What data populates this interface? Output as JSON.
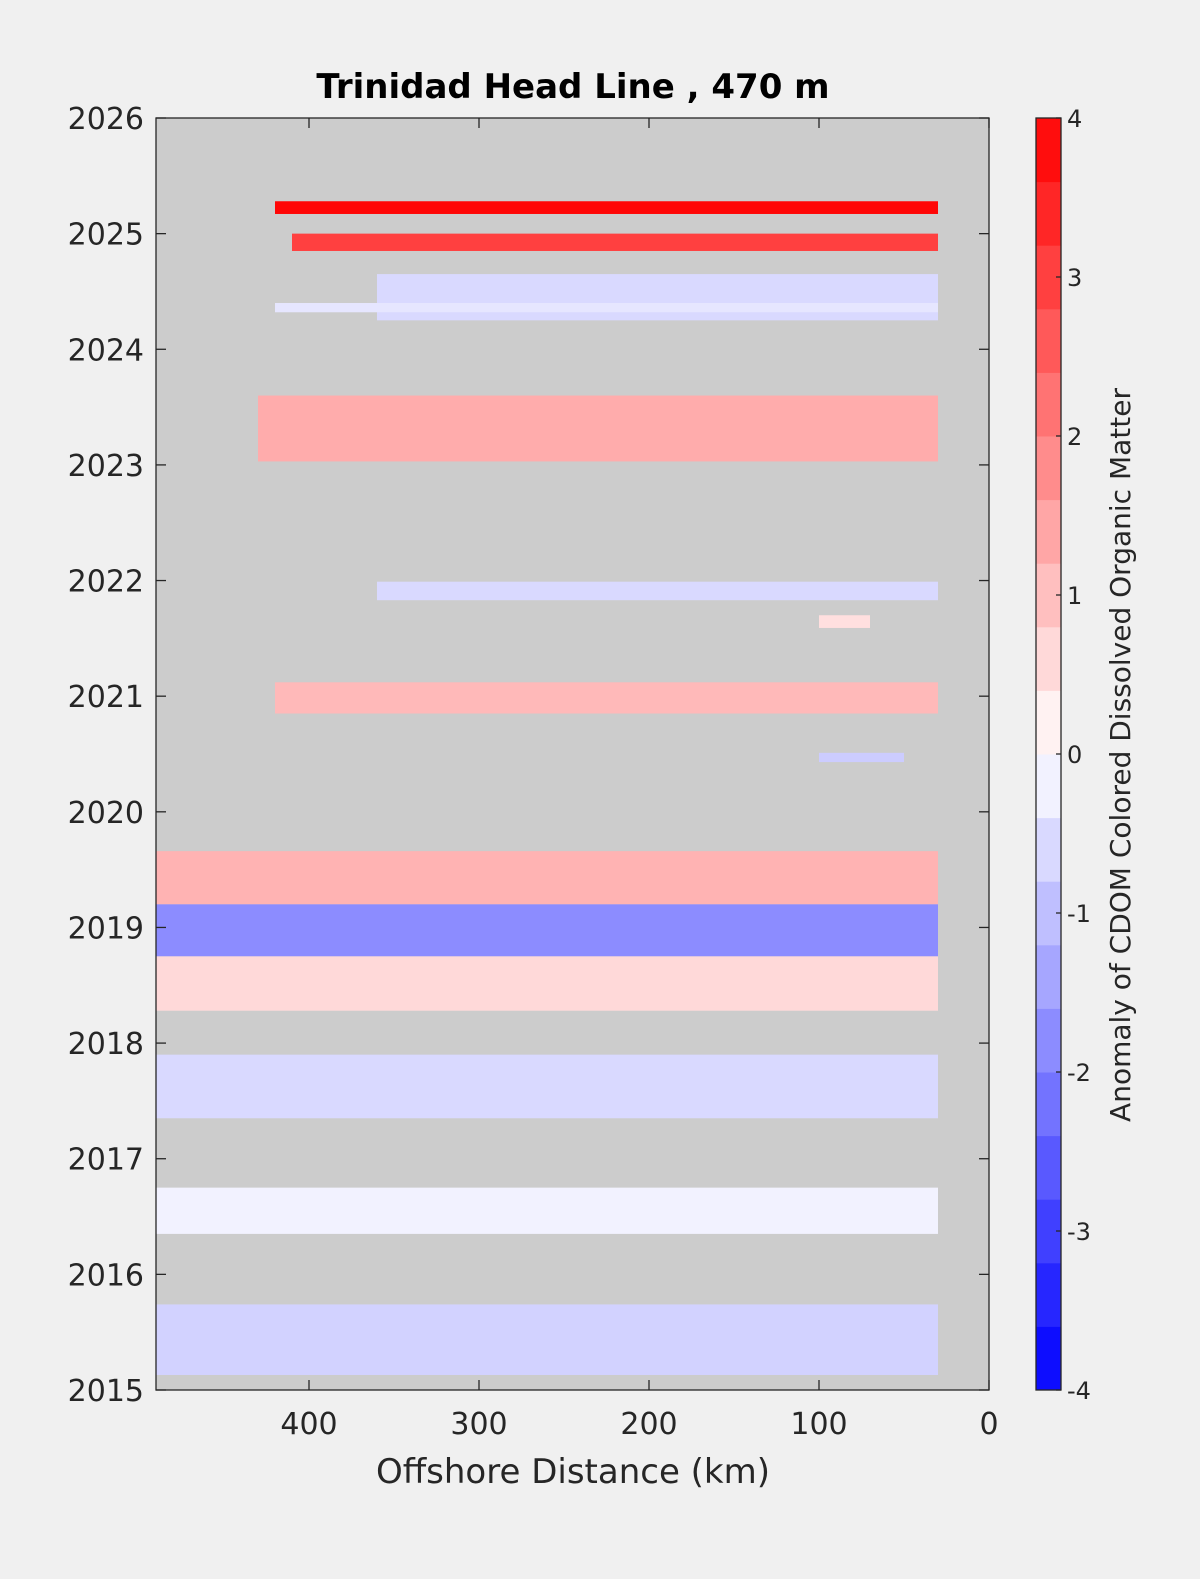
{
  "chart_data": {
    "type": "heatmap",
    "title": "Trinidad Head Line , 470 m",
    "xlabel": "Offshore Distance (km)",
    "ylabel": "",
    "colorbar_label": "Anomaly of CDOM Colored Dissolved Organic Matter",
    "x_reversed": true,
    "xlim": [
      0,
      490
    ],
    "ylim": [
      2015,
      2026
    ],
    "xticks": [
      0,
      100,
      200,
      300,
      400
    ],
    "xtick_labels": [
      "0",
      "100",
      "200",
      "300",
      "400"
    ],
    "yticks": [
      2015,
      2016,
      2017,
      2018,
      2019,
      2020,
      2021,
      2022,
      2023,
      2024,
      2025,
      2026
    ],
    "ytick_labels": [
      "2015",
      "2016",
      "2017",
      "2018",
      "2019",
      "2020",
      "2021",
      "2022",
      "2023",
      "2024",
      "2025",
      "2026"
    ],
    "clim": [
      -4,
      4
    ],
    "colorbar_ticks": [
      -4,
      -3,
      -2,
      -1,
      0,
      1,
      2,
      3,
      4
    ],
    "colorbar_tick_labels": [
      "-4",
      "-3",
      "-2",
      "-1",
      "0",
      "1",
      "2",
      "3",
      "4"
    ],
    "contour_levels": 20,
    "colormap": [
      "#0000ff",
      "#ffffff",
      "#ff0000"
    ],
    "nodata_color": "#cccccc",
    "grid": false,
    "bands": [
      {
        "x": [
          30,
          420
        ],
        "y": [
          2025.17,
          2025.28
        ],
        "value": 3.9
      },
      {
        "x": [
          30,
          410
        ],
        "y": [
          2024.85,
          2025.0
        ],
        "value": 3.0
      },
      {
        "x": [
          30,
          360
        ],
        "y": [
          2024.25,
          2024.65
        ],
        "value": -0.6
      },
      {
        "x": [
          30,
          420
        ],
        "y": [
          2024.32,
          2024.4
        ],
        "value": -0.4
      },
      {
        "x": [
          30,
          430
        ],
        "y": [
          2023.03,
          2023.6
        ],
        "value": 1.3
      },
      {
        "x": [
          30,
          360
        ],
        "y": [
          2021.83,
          2021.99
        ],
        "value": -0.6
      },
      {
        "x": [
          70,
          100
        ],
        "y": [
          2021.59,
          2021.7
        ],
        "value": 0.5
      },
      {
        "x": [
          30,
          420
        ],
        "y": [
          2020.85,
          2021.12
        ],
        "value": 1.1
      },
      {
        "x": [
          50,
          100
        ],
        "y": [
          2020.43,
          2020.51
        ],
        "value": -0.8
      },
      {
        "x": [
          30,
          490
        ],
        "y": [
          2019.2,
          2019.66
        ],
        "value": 1.2
      },
      {
        "x": [
          30,
          490
        ],
        "y": [
          2018.75,
          2019.2
        ],
        "value": -1.8
      },
      {
        "x": [
          30,
          490
        ],
        "y": [
          2018.28,
          2018.75
        ],
        "value": 0.6
      },
      {
        "x": [
          30,
          490
        ],
        "y": [
          2017.35,
          2017.9
        ],
        "value": -0.6
      },
      {
        "x": [
          30,
          490
        ],
        "y": [
          2016.35,
          2016.75
        ],
        "value": -0.2
      },
      {
        "x": [
          30,
          490
        ],
        "y": [
          2015.13,
          2015.74
        ],
        "value": -0.7
      }
    ]
  }
}
